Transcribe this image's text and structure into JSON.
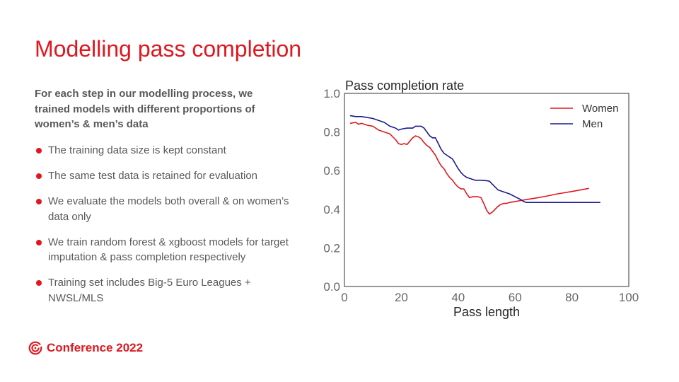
{
  "slide": {
    "title": "Modelling pass completion",
    "intro": "For each step in our modelling process, we trained models with different proportions of women’s & men’s data",
    "bullets": [
      "The training data size is kept constant",
      "The same test data is retained for evaluation",
      "We evaluate the models both overall & on women’s data only",
      "We train random forest & xgboost models for target imputation & pass completion respectively",
      "Training set includes Big-5 Euro Leagues + NWSL/MLS"
    ],
    "bullet_icon": "red-dot-icon",
    "accent_color": "#e0171f",
    "text_color": "#595959"
  },
  "footer": {
    "logo_icon": "conference-logo-icon",
    "logo_text": "Conference 2022"
  },
  "chart_data": {
    "type": "line",
    "title": "Pass completion rate",
    "xlabel": "Pass length",
    "ylabel": "",
    "xlim": [
      0,
      100
    ],
    "ylim": [
      0,
      1
    ],
    "xticks": [
      0,
      20,
      40,
      60,
      80,
      100
    ],
    "yticks": [
      0.0,
      0.2,
      0.4,
      0.6,
      0.8,
      1.0
    ],
    "grid": false,
    "legend_position": "top-right",
    "series": [
      {
        "name": "Women",
        "color": "#e0171f",
        "x": [
          2,
          4,
          5,
          6,
          8,
          10,
          12,
          14,
          16,
          18,
          19,
          20,
          21,
          22,
          24,
          25,
          26,
          27,
          28,
          29,
          30,
          31,
          32,
          33,
          34,
          35,
          36,
          37,
          38,
          39,
          40,
          41,
          42,
          43,
          44,
          45,
          46,
          47,
          48,
          49,
          50,
          51,
          52,
          53,
          54,
          55,
          56,
          57,
          58,
          60,
          62,
          64,
          66,
          70,
          75,
          80,
          86
        ],
        "y": [
          0.845,
          0.85,
          0.84,
          0.845,
          0.835,
          0.83,
          0.81,
          0.8,
          0.79,
          0.76,
          0.74,
          0.735,
          0.74,
          0.735,
          0.77,
          0.78,
          0.775,
          0.765,
          0.745,
          0.73,
          0.72,
          0.7,
          0.68,
          0.65,
          0.625,
          0.61,
          0.585,
          0.565,
          0.55,
          0.53,
          0.515,
          0.505,
          0.505,
          0.48,
          0.46,
          0.465,
          0.465,
          0.465,
          0.46,
          0.43,
          0.395,
          0.375,
          0.385,
          0.4,
          0.415,
          0.425,
          0.43,
          0.43,
          0.435,
          0.44,
          0.445,
          0.45,
          0.455,
          0.465,
          0.48,
          0.492,
          0.508
        ]
      },
      {
        "name": "Men",
        "color": "#1a1a8c",
        "x": [
          2,
          4,
          6,
          8,
          10,
          12,
          14,
          16,
          18,
          19,
          20,
          22,
          24,
          25,
          26,
          27,
          28,
          29,
          30,
          31,
          32,
          33,
          34,
          35,
          36,
          37,
          38,
          39,
          40,
          41,
          42,
          43,
          44,
          45,
          46,
          48,
          50,
          51,
          52,
          53,
          54,
          55,
          56,
          58,
          60,
          62,
          63,
          64,
          66,
          70,
          75,
          80,
          86,
          90
        ],
        "y": [
          0.885,
          0.88,
          0.88,
          0.875,
          0.87,
          0.86,
          0.85,
          0.83,
          0.82,
          0.81,
          0.815,
          0.82,
          0.82,
          0.83,
          0.83,
          0.83,
          0.82,
          0.8,
          0.78,
          0.77,
          0.77,
          0.74,
          0.71,
          0.69,
          0.68,
          0.67,
          0.66,
          0.635,
          0.61,
          0.59,
          0.575,
          0.565,
          0.56,
          0.555,
          0.55,
          0.55,
          0.548,
          0.545,
          0.53,
          0.515,
          0.5,
          0.495,
          0.49,
          0.48,
          0.465,
          0.45,
          0.44,
          0.435,
          0.435,
          0.435,
          0.435,
          0.435,
          0.435,
          0.435
        ]
      }
    ]
  }
}
